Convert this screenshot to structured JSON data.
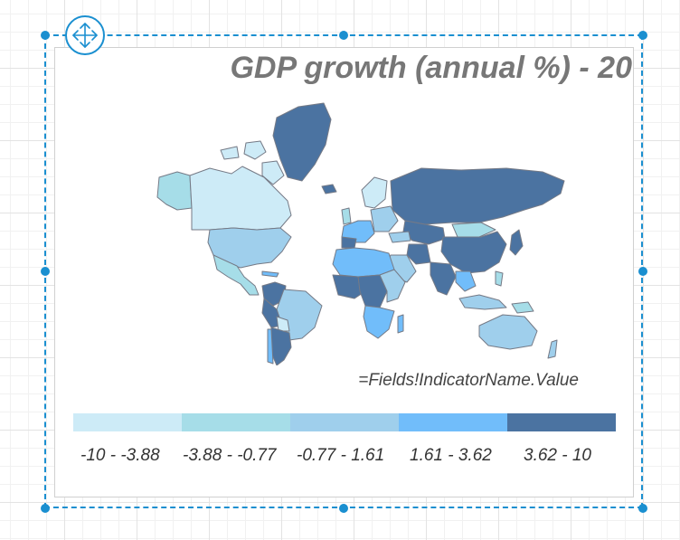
{
  "report_item": {
    "title": "GDP growth (annual %) - 20",
    "indicator_expression": "=Fields!IndicatorName.Value"
  },
  "map": {
    "colors": {
      "band1": "#cdebf7",
      "band2": "#a6dde8",
      "band3": "#9fcfec",
      "band4": "#71bdfa",
      "band5": "#4b73a1",
      "outline": "#757a86"
    }
  },
  "legend": {
    "items": [
      {
        "label": "-10 - -3.88",
        "color": "#cdebf7"
      },
      {
        "label": "-3.88 - -0.77",
        "color": "#a6dde8"
      },
      {
        "label": "-0.77 - 1.61",
        "color": "#9fcfec"
      },
      {
        "label": "1.61 - 3.62",
        "color": "#71bdfa"
      },
      {
        "label": "3.62 - 10",
        "color": "#4b73a1"
      }
    ]
  },
  "selection": {
    "accent": "#1a8fd0",
    "move_icon": "move-arrows-icon"
  }
}
